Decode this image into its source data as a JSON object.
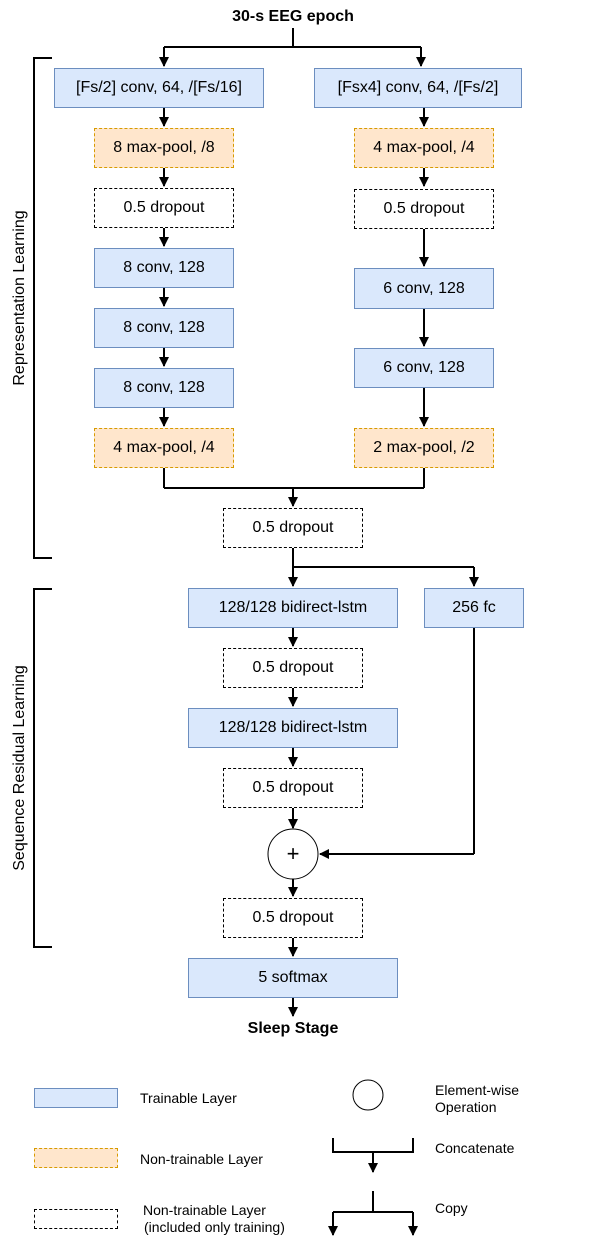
{
  "title": "30-s EEG epoch",
  "output": "Sleep Stage",
  "sections": {
    "representation": "Representation Learning",
    "sequence": "Sequence Residual Learning"
  },
  "left_branch": {
    "conv1": "[Fs/2] conv, 64, /[Fs/16]",
    "pool1": "8 max-pool, /8",
    "drop1": "0.5 dropout",
    "conv2": "8 conv, 128",
    "conv3": "8 conv, 128",
    "conv4": "8 conv, 128",
    "pool2": "4 max-pool, /4"
  },
  "right_branch": {
    "conv1": "[Fsx4] conv, 64, /[Fs/2]",
    "pool1": "4 max-pool, /4",
    "drop1": "0.5 dropout",
    "conv2": "6 conv, 128",
    "conv3": "6 conv, 128",
    "pool2": "2 max-pool, /2"
  },
  "merge": {
    "drop": "0.5 dropout"
  },
  "sequence": {
    "lstm1": "128/128 bidirect-lstm",
    "fc": "256 fc",
    "drop1": "0.5 dropout",
    "lstm2": "128/128 bidirect-lstm",
    "drop2": "0.5 dropout",
    "plus": "+",
    "drop3": "0.5 dropout",
    "softmax": "5 softmax"
  },
  "legend": {
    "trainable": "Trainable Layer",
    "nontrainable": "Non-trainable Layer",
    "nontrainable_train_line1": "Non-trainable Layer",
    "nontrainable_train_line2": "(included only training)",
    "elementwise_line1": "Element-wise",
    "elementwise_line2": "Operation",
    "concatenate": "Concatenate",
    "copy": "Copy"
  },
  "colors": {
    "trainable_fill": "#dae8fc",
    "trainable_stroke": "#6c8ebf",
    "nontrainable_fill": "#ffe6cc",
    "nontrainable_stroke": "#d79b00",
    "line": "#000000"
  }
}
